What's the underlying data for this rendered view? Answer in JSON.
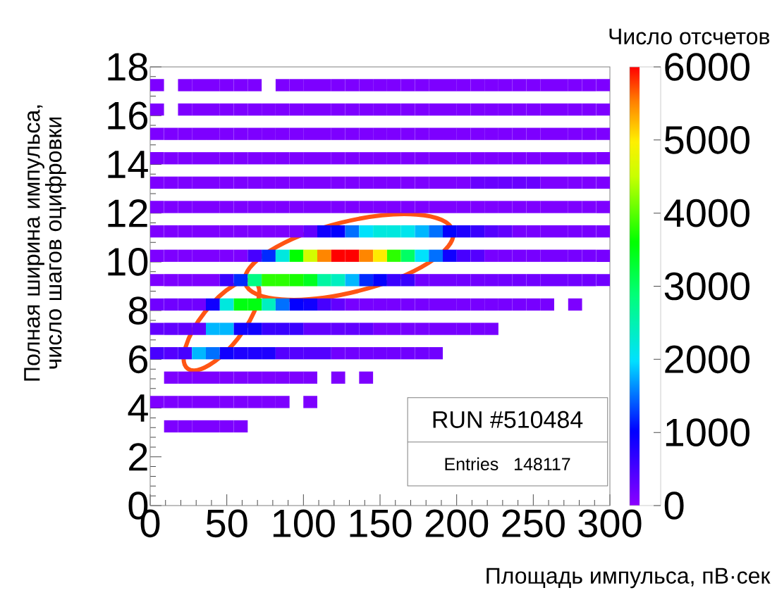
{
  "chart_data": {
    "type": "heatmap",
    "xlabel": "Площадь импульса, пВ·сек",
    "ylabel": "Полная ширина импульса, число шагов оцифровки",
    "clabel": "Число отсчетов",
    "x": [
      4.5,
      13.6,
      22.7,
      31.8,
      40.9,
      50,
      59.1,
      68.2,
      77.3,
      86.4,
      95.5,
      104.5,
      113.6,
      122.7,
      131.8,
      140.9,
      150,
      159.1,
      168.2,
      177.3,
      186.4,
      195.5,
      204.5,
      213.6,
      222.7,
      231.8,
      240.9,
      250,
      259.1,
      268.2,
      277.3,
      286.4,
      295.5
    ],
    "y": [
      17.25,
      16.25,
      15.25,
      14.25,
      13.25,
      12.25,
      11.25,
      10.25,
      9.25,
      8.25,
      7.25,
      6.25,
      5.25,
      4.25,
      3.25
    ],
    "cells": [
      [
        100,
        null,
        100,
        100,
        100,
        100,
        100,
        100,
        null,
        100,
        100,
        100,
        100,
        100,
        100,
        100,
        100,
        100,
        100,
        100,
        100,
        100,
        100,
        100,
        100,
        100,
        100,
        100,
        100,
        100,
        100,
        100,
        100
      ],
      [
        100,
        null,
        100,
        100,
        100,
        100,
        100,
        100,
        100,
        100,
        100,
        100,
        100,
        100,
        100,
        100,
        100,
        100,
        100,
        100,
        100,
        100,
        100,
        100,
        100,
        100,
        100,
        100,
        100,
        100,
        100,
        100,
        100
      ],
      [
        100,
        100,
        100,
        100,
        100,
        100,
        100,
        100,
        100,
        100,
        100,
        100,
        100,
        100,
        100,
        100,
        100,
        100,
        100,
        100,
        100,
        100,
        100,
        100,
        100,
        100,
        100,
        100,
        100,
        100,
        100,
        100,
        100
      ],
      [
        100,
        100,
        100,
        100,
        100,
        100,
        100,
        100,
        100,
        100,
        100,
        100,
        100,
        100,
        100,
        100,
        100,
        100,
        100,
        100,
        100,
        100,
        100,
        100,
        100,
        100,
        100,
        100,
        100,
        100,
        100,
        100,
        100
      ],
      [
        100,
        100,
        100,
        100,
        100,
        100,
        100,
        100,
        100,
        100,
        100,
        100,
        100,
        100,
        100,
        100,
        100,
        100,
        100,
        100,
        100,
        100,
        100,
        250,
        250,
        250,
        250,
        250,
        100,
        100,
        100,
        100,
        100
      ],
      [
        100,
        100,
        100,
        100,
        100,
        100,
        100,
        100,
        100,
        100,
        100,
        100,
        100,
        100,
        100,
        100,
        100,
        100,
        100,
        100,
        100,
        100,
        100,
        100,
        100,
        100,
        100,
        100,
        100,
        100,
        100,
        100,
        100
      ],
      [
        100,
        100,
        100,
        100,
        100,
        100,
        100,
        100,
        100,
        100,
        100,
        300,
        900,
        1000,
        1500,
        2000,
        2200,
        2200,
        2100,
        1800,
        1500,
        1000,
        800,
        600,
        400,
        300,
        150,
        150,
        150,
        150,
        150,
        150,
        150
      ],
      [
        100,
        100,
        100,
        100,
        100,
        100,
        100,
        500,
        1200,
        2200,
        3600,
        4600,
        5500,
        6000,
        6000,
        5500,
        5000,
        3800,
        3000,
        2000,
        1500,
        900,
        500,
        400,
        150,
        150,
        150,
        150,
        150,
        150,
        150,
        150,
        150
      ],
      [
        100,
        100,
        100,
        100,
        100,
        600,
        1200,
        2800,
        3800,
        3800,
        3700,
        3400,
        2600,
        2400,
        1800,
        1200,
        1000,
        600,
        600,
        200,
        200,
        200,
        200,
        200,
        200,
        200,
        200,
        200,
        200,
        200,
        200,
        200,
        200
      ],
      [
        200,
        200,
        200,
        200,
        900,
        2200,
        3500,
        3500,
        2400,
        1500,
        1000,
        900,
        500,
        300,
        150,
        150,
        150,
        150,
        150,
        150,
        150,
        150,
        150,
        150,
        150,
        150,
        150,
        150,
        150,
        null,
        100,
        null,
        null
      ],
      [
        300,
        300,
        300,
        300,
        1800,
        1800,
        900,
        900,
        600,
        600,
        600,
        300,
        300,
        300,
        300,
        300,
        150,
        150,
        150,
        150,
        150,
        150,
        150,
        150,
        150,
        null,
        null,
        null,
        null,
        null,
        null,
        null,
        null
      ],
      [
        500,
        400,
        500,
        1800,
        1500,
        900,
        800,
        800,
        800,
        400,
        400,
        400,
        400,
        200,
        200,
        200,
        200,
        200,
        200,
        200,
        200,
        null,
        null,
        null,
        null,
        null,
        null,
        null,
        null,
        null,
        null,
        null,
        null
      ],
      [
        null,
        100,
        100,
        100,
        100,
        100,
        100,
        100,
        100,
        100,
        100,
        100,
        null,
        100,
        null,
        100,
        null,
        null,
        null,
        null,
        null,
        null,
        null,
        null,
        null,
        null,
        null,
        null,
        null,
        null,
        null,
        null,
        null
      ],
      [
        100,
        100,
        100,
        100,
        100,
        100,
        100,
        100,
        100,
        100,
        null,
        100,
        null,
        null,
        null,
        null,
        null,
        null,
        null,
        null,
        null,
        null,
        null,
        null,
        null,
        null,
        null,
        null,
        null,
        null,
        null,
        null,
        null
      ],
      [
        null,
        100,
        100,
        100,
        100,
        100,
        100,
        null,
        null,
        null,
        null,
        null,
        null,
        null,
        null,
        null,
        null,
        null,
        null,
        null,
        null,
        null,
        null,
        null,
        null,
        null,
        null,
        null,
        null,
        null,
        null,
        null,
        null
      ]
    ],
    "xlim": [
      0,
      300
    ],
    "ylim": [
      0,
      18
    ],
    "xticks": [
      0,
      50,
      100,
      150,
      200,
      250,
      300
    ],
    "yticks": [
      0,
      2,
      4,
      6,
      8,
      10,
      12,
      14,
      16,
      18
    ],
    "clim": [
      0,
      6000
    ],
    "cticks": [
      0,
      1000,
      2000,
      3000,
      4000,
      5000,
      6000
    ],
    "annotations": [
      "RUN #510484",
      "Entries   148117"
    ]
  }
}
